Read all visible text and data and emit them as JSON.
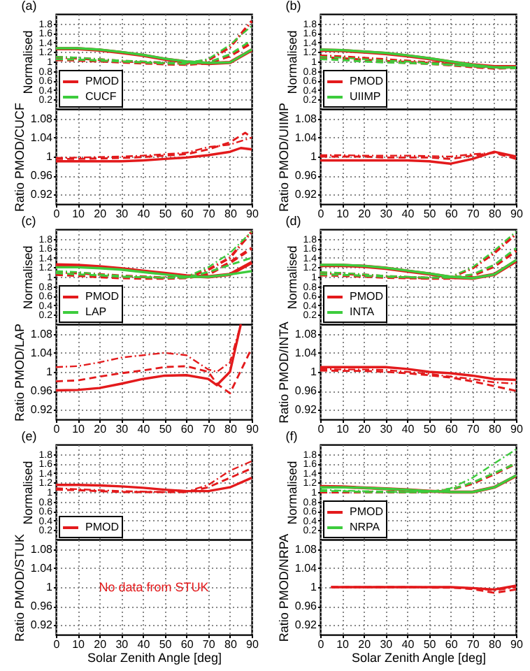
{
  "chart_data": [
    {
      "type": "line",
      "title": "(a)",
      "ylabel": "Normalised",
      "x": [
        0,
        10,
        20,
        30,
        40,
        50,
        60,
        70,
        80,
        90
      ],
      "xlim": [
        0,
        90
      ],
      "xticks": [
        0,
        10,
        20,
        30,
        40,
        50,
        60,
        70,
        80,
        90
      ],
      "ylim": [
        0,
        2
      ],
      "yticks": [
        0.2,
        0.4,
        0.6,
        0.8,
        1,
        1.2,
        1.4,
        1.6,
        1.8
      ],
      "grid": true,
      "legend": "bottom left",
      "tick_labels": "y",
      "series": [
        {
          "name": "PMOD",
          "color": "#e31a1c",
          "line_style": "solid",
          "values": [
            1.27,
            1.27,
            1.24,
            1.19,
            1.13,
            1.05,
            0.99,
            0.96,
            0.98,
            1.24
          ]
        },
        {
          "color": "#e31a1c",
          "line_style": "dashed",
          "values": [
            1.04,
            1.03,
            1.01,
            0.99,
            0.97,
            0.95,
            0.94,
            0.97,
            1.12,
            1.4
          ]
        },
        {
          "color": "#e31a1c",
          "line_style": "dotted",
          "values": [
            1.09,
            1.07,
            1.04,
            1.01,
            0.99,
            0.97,
            0.96,
            1.03,
            1.3,
            1.85
          ]
        },
        {
          "name": "CUCF",
          "color": "#3dcc3d",
          "line_style": "solid",
          "values": [
            1.28,
            1.28,
            1.25,
            1.2,
            1.14,
            1.06,
            1,
            0.97,
            0.98,
            1.25
          ]
        },
        {
          "color": "#3dcc3d",
          "line_style": "dashed",
          "values": [
            1.05,
            1.04,
            1.02,
            1,
            0.98,
            0.96,
            0.95,
            0.98,
            1.15,
            1.45
          ]
        },
        {
          "color": "#3dcc3d",
          "line_style": "dotted",
          "values": [
            1.1,
            1.08,
            1.05,
            1.02,
            1,
            0.98,
            0.97,
            1.05,
            1.35,
            1.75
          ]
        }
      ]
    },
    {
      "type": "line",
      "ylabel": "Ratio PMOD/CUCF",
      "x": [
        0,
        10,
        20,
        30,
        40,
        50,
        60,
        70,
        80,
        90
      ],
      "xlim": [
        0,
        90
      ],
      "xticks": [
        0,
        10,
        20,
        30,
        40,
        50,
        60,
        70,
        80,
        90
      ],
      "ylim": [
        0.9,
        1.1
      ],
      "yticks": [
        0.92,
        0.96,
        1,
        1.04,
        1.08
      ],
      "grid": true,
      "series": [
        {
          "color": "#e31a1c",
          "line_style": "solid",
          "x": [
            0,
            10,
            20,
            30,
            40,
            50,
            60,
            70,
            80,
            85,
            90
          ],
          "values": [
            0.99,
            0.99,
            0.99,
            0.99,
            0.992,
            0.995,
            0.998,
            1.003,
            1.01,
            1.018,
            1.015
          ]
        },
        {
          "color": "#e31a1c",
          "line_style": "dashed",
          "x": [
            0,
            10,
            20,
            30,
            40,
            50,
            60,
            70,
            80,
            87,
            90
          ],
          "values": [
            0.995,
            0.995,
            0.996,
            0.997,
            0.999,
            1.002,
            1.005,
            1.015,
            1.03,
            1.05,
            1.04
          ]
        },
        {
          "color": "#e31a1c",
          "line_style": "dotted",
          "values": [
            0.997,
            0.998,
            0.999,
            1,
            1.002,
            1.005,
            1.008,
            1.02,
            1.025,
            1.04
          ]
        }
      ]
    },
    {
      "type": "line",
      "title": "(b)",
      "ylabel": "Normalised",
      "x": [
        0,
        10,
        20,
        30,
        40,
        50,
        60,
        70,
        80,
        90
      ],
      "xlim": [
        0,
        90
      ],
      "xticks": [
        0,
        10,
        20,
        30,
        40,
        50,
        60,
        70,
        80,
        90
      ],
      "ylim": [
        0,
        2
      ],
      "yticks": [
        0.2,
        0.4,
        0.6,
        0.8,
        1,
        1.2,
        1.4,
        1.6,
        1.8
      ],
      "grid": true,
      "legend": "bottom left",
      "tick_labels": "y",
      "series": [
        {
          "name": "PMOD",
          "color": "#e31a1c",
          "line_style": "solid",
          "values": [
            1.24,
            1.23,
            1.2,
            1.17,
            1.12,
            1.06,
            0.99,
            0.93,
            0.89,
            0.89
          ]
        },
        {
          "color": "#e31a1c",
          "line_style": "dashed",
          "values": [
            1.08,
            1.06,
            1.03,
            1,
            0.98,
            0.96,
            0.93,
            0.89,
            0.86,
            0.87
          ]
        },
        {
          "color": "#e31a1c",
          "line_style": "dotted",
          "values": [
            1.12,
            1.1,
            1.07,
            1.04,
            1.01,
            0.98,
            0.95,
            0.9,
            0.87,
            0.88
          ]
        },
        {
          "name": "UIIMP",
          "color": "#3dcc3d",
          "line_style": "solid",
          "values": [
            1.25,
            1.24,
            1.21,
            1.18,
            1.13,
            1.07,
            1,
            0.93,
            0.88,
            0.88
          ]
        },
        {
          "color": "#3dcc3d",
          "line_style": "dashed",
          "values": [
            1.05,
            1.03,
            1,
            0.98,
            0.97,
            0.95,
            0.93,
            0.9,
            0.87,
            0.86
          ]
        },
        {
          "color": "#3dcc3d",
          "line_style": "dotted",
          "values": [
            1.1,
            1.08,
            1.05,
            1.02,
            1,
            0.97,
            0.94,
            0.9,
            0.87,
            0.87
          ]
        }
      ]
    },
    {
      "type": "line",
      "ylabel": "Ratio PMOD/UIIMP",
      "x": [
        0,
        10,
        20,
        30,
        40,
        50,
        60,
        70,
        80,
        90
      ],
      "xlim": [
        0,
        90
      ],
      "xticks": [
        0,
        10,
        20,
        30,
        40,
        50,
        60,
        70,
        80,
        90
      ],
      "ylim": [
        0.9,
        1.1
      ],
      "yticks": [
        0.92,
        0.96,
        1,
        1.04,
        1.08
      ],
      "grid": true,
      "series": [
        {
          "color": "#e31a1c",
          "line_style": "solid",
          "values": [
            0.992,
            0.992,
            0.992,
            0.992,
            0.992,
            0.99,
            0.985,
            0.995,
            1.01,
            1
          ]
        },
        {
          "color": "#e31a1c",
          "line_style": "dashed",
          "values": [
            1,
            1,
            1,
            0.998,
            0.998,
            0.998,
            0.995,
            1.002,
            1.008,
            0.995
          ]
        },
        {
          "color": "#e31a1c",
          "line_style": "dotted",
          "values": [
            1.003,
            1.003,
            1.002,
            1.002,
            1.002,
            1.001,
            1,
            1.005,
            1.008,
            1
          ]
        }
      ]
    },
    {
      "type": "line",
      "title": "(c)",
      "ylabel": "Normalised",
      "x": [
        0,
        10,
        20,
        30,
        40,
        50,
        60,
        70,
        80,
        90
      ],
      "xlim": [
        0,
        90
      ],
      "xticks": [
        0,
        10,
        20,
        30,
        40,
        50,
        60,
        70,
        80,
        90
      ],
      "ylim": [
        0,
        2
      ],
      "yticks": [
        0.2,
        0.4,
        0.6,
        0.8,
        1,
        1.2,
        1.4,
        1.6,
        1.8
      ],
      "grid": true,
      "legend": "bottom left",
      "tick_labels": "y",
      "series": [
        {
          "name": "PMOD",
          "color": "#e31a1c",
          "line_style": "solid",
          "values": [
            1.25,
            1.24,
            1.21,
            1.17,
            1.12,
            1.07,
            1.02,
            1,
            1.05,
            1.3
          ]
        },
        {
          "color": "#e31a1c",
          "line_style": "dashed",
          "values": [
            1.05,
            1.03,
            1,
            0.98,
            0.97,
            0.97,
            0.98,
            1.05,
            1.3,
            1.6
          ]
        },
        {
          "color": "#e31a1c",
          "line_style": "dotted",
          "values": [
            1.1,
            1.08,
            1.05,
            1.02,
            1,
            0.98,
            0.99,
            1.15,
            1.4,
            1.95
          ]
        },
        {
          "name": "LAP",
          "color": "#3dcc3d",
          "line_style": "solid",
          "values": [
            1.2,
            1.2,
            1.18,
            1.15,
            1.1,
            1.05,
            1,
            1,
            1.05,
            1.12
          ]
        },
        {
          "color": "#3dcc3d",
          "line_style": "dashed",
          "values": [
            1.08,
            1.05,
            1.03,
            1,
            0.99,
            0.98,
            0.98,
            1.1,
            1.25,
            1.4
          ]
        },
        {
          "color": "#3dcc3d",
          "line_style": "dotted",
          "values": [
            1.12,
            1.1,
            1.05,
            1.02,
            1,
            0.98,
            1,
            1.2,
            1.5,
            1.95
          ]
        }
      ]
    },
    {
      "type": "line",
      "ylabel": "Ratio PMOD/LAP",
      "xlim": [
        0,
        90
      ],
      "xticks": [
        0,
        10,
        20,
        30,
        40,
        50,
        60,
        70,
        80,
        90
      ],
      "ylim": [
        0.9,
        1.1
      ],
      "yticks": [
        0.92,
        0.96,
        1,
        1.04,
        1.08
      ],
      "grid": true,
      "series": [
        {
          "color": "#e31a1c",
          "line_style": "solid",
          "x": [
            0,
            10,
            20,
            30,
            40,
            50,
            60,
            70,
            74,
            80,
            85
          ],
          "values": [
            0.961,
            0.962,
            0.966,
            0.975,
            0.985,
            0.992,
            0.993,
            0.985,
            0.972,
            1,
            1.1
          ]
        },
        {
          "color": "#e31a1c",
          "line_style": "dashed",
          "x": [
            0,
            10,
            20,
            30,
            40,
            50,
            60,
            70,
            74,
            80,
            90
          ],
          "values": [
            0.98,
            0.982,
            0.99,
            0.997,
            1.003,
            1.01,
            1.012,
            1,
            0.975,
            0.955,
            1.05
          ]
        },
        {
          "color": "#e31a1c",
          "line_style": "dotted",
          "x": [
            0,
            10,
            20,
            30,
            40,
            50,
            60,
            70,
            74,
            80,
            85
          ],
          "values": [
            1.01,
            1.012,
            1.02,
            1.03,
            1.035,
            1.04,
            1.035,
            1.005,
            1,
            1.02,
            1.1
          ]
        }
      ]
    },
    {
      "type": "line",
      "title": "(d)",
      "ylabel": "Normalised",
      "x": [
        0,
        10,
        20,
        30,
        40,
        50,
        60,
        70,
        80,
        90
      ],
      "xlim": [
        0,
        90
      ],
      "xticks": [
        0,
        10,
        20,
        30,
        40,
        50,
        60,
        70,
        80,
        90
      ],
      "ylim": [
        0,
        2
      ],
      "yticks": [
        0.2,
        0.4,
        0.6,
        0.8,
        1,
        1.2,
        1.4,
        1.6,
        1.8
      ],
      "grid": true,
      "legend": "bottom left",
      "tick_labels": "y",
      "series": [
        {
          "name": "PMOD",
          "color": "#e31a1c",
          "line_style": "solid",
          "values": [
            1.24,
            1.24,
            1.22,
            1.18,
            1.12,
            1.06,
            0.99,
            0.97,
            1.05,
            1.33
          ]
        },
        {
          "color": "#e31a1c",
          "line_style": "dashed",
          "values": [
            1.04,
            1.03,
            1.01,
            0.99,
            0.98,
            0.97,
            0.97,
            1.03,
            1.22,
            1.55
          ]
        },
        {
          "color": "#e31a1c",
          "line_style": "dotted",
          "values": [
            1.08,
            1.07,
            1.04,
            1.01,
            0.99,
            0.97,
            0.99,
            1.18,
            1.5,
            1.9
          ]
        },
        {
          "name": "INTA",
          "color": "#3dcc3d",
          "line_style": "solid",
          "values": [
            1.25,
            1.25,
            1.23,
            1.19,
            1.13,
            1.07,
            1,
            0.97,
            1.05,
            1.35
          ]
        },
        {
          "color": "#3dcc3d",
          "line_style": "dashed",
          "values": [
            1.05,
            1.04,
            1.02,
            1,
            0.99,
            0.98,
            0.98,
            1.05,
            1.25,
            1.6
          ]
        },
        {
          "color": "#3dcc3d",
          "line_style": "dotted",
          "values": [
            1.1,
            1.08,
            1.05,
            1.02,
            1,
            0.98,
            1,
            1.2,
            1.55,
            1.95
          ]
        }
      ]
    },
    {
      "type": "line",
      "ylabel": "Ratio PMOD/INTA",
      "x": [
        0,
        10,
        20,
        30,
        40,
        50,
        60,
        70,
        80,
        90
      ],
      "xlim": [
        0,
        90
      ],
      "xticks": [
        0,
        10,
        20,
        30,
        40,
        50,
        60,
        70,
        80,
        90
      ],
      "ylim": [
        0.9,
        1.1
      ],
      "yticks": [
        0.92,
        0.96,
        1,
        1.04,
        1.08
      ],
      "grid": true,
      "series": [
        {
          "color": "#e31a1c",
          "line_style": "solid",
          "values": [
            1.01,
            1.01,
            1.01,
            1.01,
            1.006,
            1,
            0.997,
            0.992,
            0.985,
            0.983
          ]
        },
        {
          "color": "#e31a1c",
          "line_style": "dashed",
          "values": [
            1.003,
            1.002,
            1.002,
            1,
            0.997,
            0.993,
            0.988,
            0.98,
            0.97,
            0.96
          ]
        },
        {
          "color": "#e31a1c",
          "line_style": "dotted",
          "values": [
            1.006,
            1.005,
            1.005,
            1.004,
            1,
            0.996,
            0.99,
            0.985,
            0.978,
            0.975
          ]
        }
      ]
    },
    {
      "type": "line",
      "title": "(e)",
      "ylabel": "Normalised",
      "x": [
        0,
        10,
        20,
        30,
        40,
        50,
        60,
        70,
        80,
        90
      ],
      "xlim": [
        0,
        90
      ],
      "xticks": [
        0,
        10,
        20,
        30,
        40,
        50,
        60,
        70,
        80,
        90
      ],
      "ylim": [
        0,
        2
      ],
      "yticks": [
        0.2,
        0.4,
        0.6,
        0.8,
        1,
        1.2,
        1.4,
        1.6,
        1.8
      ],
      "grid": true,
      "legend": "bottom left",
      "tick_labels": "y",
      "series": [
        {
          "name": "PMOD",
          "color": "#e31a1c",
          "line_style": "solid",
          "values": [
            1.15,
            1.15,
            1.14,
            1.12,
            1.09,
            1.05,
            1.02,
            1.02,
            1.1,
            1.3
          ]
        },
        {
          "color": "#e31a1c",
          "line_style": "dashed",
          "values": [
            1.05,
            1.04,
            1.02,
            1,
            1,
            1,
            1,
            1.1,
            1.3,
            1.5
          ]
        },
        {
          "color": "#e31a1c",
          "line_style": "dotted",
          "values": [
            1.08,
            1.06,
            1.04,
            1.02,
            1.01,
            1,
            1.01,
            1.15,
            1.45,
            1.65
          ]
        }
      ]
    },
    {
      "type": "line",
      "ylabel": "Ratio PMOD/STUK",
      "xlabel": "Solar Zenith Angle [deg]",
      "xlim": [
        0,
        90
      ],
      "xticks": [
        0,
        10,
        20,
        30,
        40,
        50,
        60,
        70,
        80,
        90
      ],
      "ylim": [
        0.9,
        1.1
      ],
      "yticks": [
        0.92,
        0.96,
        1,
        1.04,
        1.08
      ],
      "grid": true,
      "annotations": [
        "No data from STUK"
      ]
    },
    {
      "type": "line",
      "title": "(f)",
      "ylabel": "Normalised",
      "x": [
        0,
        10,
        20,
        30,
        40,
        50,
        60,
        70,
        80,
        90
      ],
      "xlim": [
        0,
        90
      ],
      "xticks": [
        0,
        10,
        20,
        30,
        40,
        50,
        60,
        70,
        80,
        90
      ],
      "ylim": [
        0,
        2
      ],
      "yticks": [
        0.2,
        0.4,
        0.6,
        0.8,
        1,
        1.2,
        1.4,
        1.6,
        1.8
      ],
      "grid": true,
      "legend": "bottom left",
      "tick_labels": "y",
      "series": [
        {
          "name": "PMOD",
          "color": "#e31a1c",
          "line_style": "solid",
          "values": [
            1.12,
            1.11,
            1.09,
            1.07,
            1.05,
            1.02,
            1,
            1,
            1.1,
            1.34
          ]
        },
        {
          "color": "#e31a1c",
          "line_style": "dashed",
          "values": [
            1,
            1,
            1,
            1,
            1,
            1,
            1.05,
            1.18,
            1.38,
            1.6
          ]
        },
        {
          "name": "NRPA",
          "color": "#3dcc3d",
          "line_style": "solid",
          "values": [
            1.1,
            1.1,
            1.09,
            1.07,
            1.05,
            1.02,
            1,
            1,
            1.1,
            1.35
          ]
        },
        {
          "color": "#3dcc3d",
          "line_style": "dashed",
          "values": [
            1.02,
            1.02,
            1,
            1,
            1,
            1,
            1.05,
            1.2,
            1.4,
            1.6
          ]
        },
        {
          "color": "#3dcc3d",
          "line_style": "dotted",
          "values": [
            1.05,
            1.03,
            1.02,
            1.01,
            1,
            1,
            1.08,
            1.3,
            1.6,
            1.9
          ]
        }
      ]
    },
    {
      "type": "line",
      "ylabel": "Ratio PMOD/NRPA",
      "xlabel": "Solar Zenith Angle [deg]",
      "x": [
        5,
        10,
        20,
        30,
        40,
        50,
        60,
        70,
        80,
        90
      ],
      "xlim": [
        0,
        90
      ],
      "xticks": [
        0,
        10,
        20,
        30,
        40,
        50,
        60,
        70,
        80,
        90
      ],
      "ylim": [
        0.9,
        1.1
      ],
      "yticks": [
        0.92,
        0.96,
        1,
        1.04,
        1.08
      ],
      "grid": true,
      "series": [
        {
          "color": "#e31a1c",
          "line_style": "solid",
          "values": [
            1,
            1,
            1,
            1,
            1,
            1,
            1,
            0.998,
            0.995,
            1.003
          ]
        },
        {
          "color": "#e31a1c",
          "line_style": "dashed",
          "values": [
            1,
            1,
            1,
            1,
            1,
            0.999,
            0.999,
            0.996,
            0.988,
            0.995
          ]
        },
        {
          "color": "#e31a1c",
          "line_style": "dotted",
          "values": [
            1,
            1,
            1,
            1,
            1,
            1,
            1,
            0.998,
            0.993,
            1
          ]
        }
      ]
    }
  ]
}
